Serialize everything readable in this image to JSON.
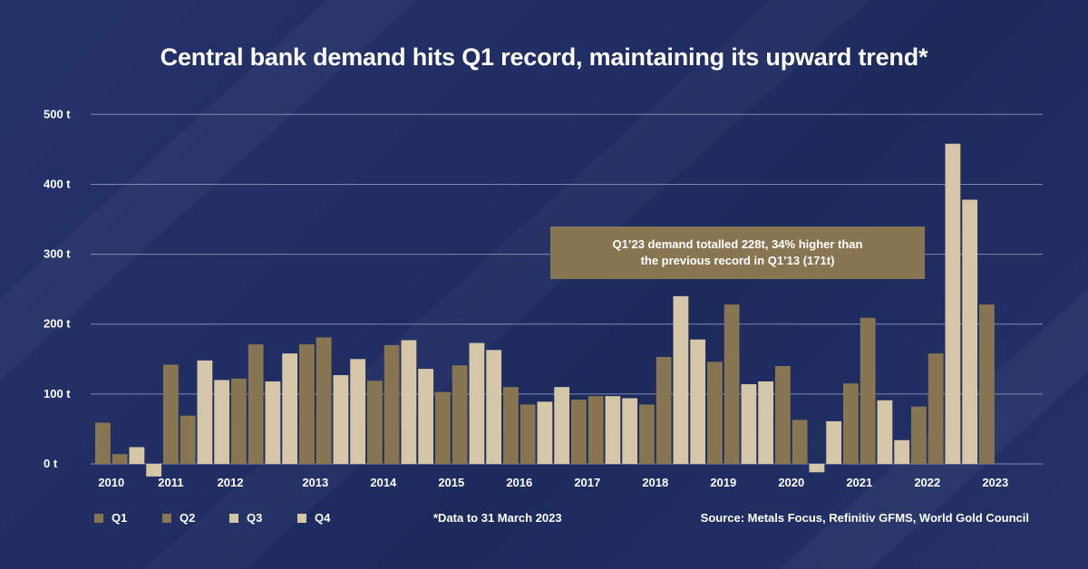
{
  "title": "Central bank demand hits Q1 record, maintaining its upward trend*",
  "annotation": {
    "line1": "Q1’23 demand totalled 228t, 34% higher than",
    "line2": "the previous record in Q1’13 (171t)"
  },
  "footnote": "*Data to 31 March 2023",
  "source": "Source: Metals Focus, Refinitiv GFMS, World Gold Council",
  "colors": {
    "Q1": "#877651",
    "Q2": "#877651",
    "Q3": "#d4c6a6",
    "Q4": "#d4c6a6",
    "callout": "#877651",
    "background": "#1f2d62",
    "grid": "#8f99bf"
  },
  "chart_data": {
    "type": "bar",
    "title": "Central bank demand hits Q1 record, maintaining its upward trend*",
    "xlabel": "",
    "ylabel": "",
    "ylim": [
      -20,
      500
    ],
    "yticks": [
      0,
      100,
      200,
      300,
      400,
      500
    ],
    "ytick_labels": [
      "0 t",
      "100 t",
      "200 t",
      "300 t",
      "400 t",
      "500 t"
    ],
    "grid": true,
    "legend_position": "bottom-left",
    "categories": [
      "Q1’10",
      "Q2’10",
      "Q3’10",
      "Q4’10",
      "Q1’11",
      "Q2’11",
      "Q3’11",
      "Q4’11",
      "Q1’12",
      "Q2’12",
      "Q3’12",
      "Q4’12",
      "Q1’13",
      "Q2’13",
      "Q3’13",
      "Q4’13",
      "Q1’14",
      "Q2’14",
      "Q3’14",
      "Q4’14",
      "Q1’15",
      "Q2’15",
      "Q3’15",
      "Q4’15",
      "Q1’16",
      "Q2’16",
      "Q3’16",
      "Q4’16",
      "Q1’17",
      "Q2’17",
      "Q3’17",
      "Q4’17",
      "Q1’18",
      "Q2’18",
      "Q3’18",
      "Q4’18",
      "Q1’19",
      "Q2’19",
      "Q3’19",
      "Q4’19",
      "Q1’20",
      "Q2’20",
      "Q3’20",
      "Q4’20",
      "Q1’21",
      "Q2’21",
      "Q3’21",
      "Q4’21",
      "Q1’22",
      "Q2’22",
      "Q3’22",
      "Q4’22",
      "Q1’23"
    ],
    "quarters": [
      "Q1",
      "Q2",
      "Q3",
      "Q4",
      "Q1",
      "Q2",
      "Q3",
      "Q4",
      "Q1",
      "Q2",
      "Q3",
      "Q4",
      "Q1",
      "Q2",
      "Q3",
      "Q4",
      "Q1",
      "Q2",
      "Q3",
      "Q4",
      "Q1",
      "Q2",
      "Q3",
      "Q4",
      "Q1",
      "Q2",
      "Q3",
      "Q4",
      "Q1",
      "Q2",
      "Q3",
      "Q4",
      "Q1",
      "Q2",
      "Q3",
      "Q4",
      "Q1",
      "Q2",
      "Q3",
      "Q4",
      "Q1",
      "Q2",
      "Q3",
      "Q4",
      "Q1",
      "Q2",
      "Q3",
      "Q4",
      "Q1",
      "Q2",
      "Q3",
      "Q4",
      "Q1"
    ],
    "values": [
      59,
      14,
      24,
      -18,
      142,
      69,
      148,
      120,
      122,
      171,
      118,
      158,
      171,
      181,
      127,
      150,
      119,
      170,
      177,
      136,
      103,
      141,
      173,
      163,
      110,
      85,
      89,
      110,
      92,
      97,
      97,
      94,
      85,
      153,
      240,
      178,
      146,
      228,
      114,
      118,
      140,
      63,
      -12,
      61,
      115,
      209,
      91,
      34,
      82,
      158,
      458,
      378,
      228
    ],
    "year_labels": [
      "2010",
      "2011",
      "2012",
      "2013",
      "2014",
      "2015",
      "2016",
      "2017",
      "2018",
      "2019",
      "2020",
      "2021",
      "2022",
      "2023"
    ],
    "year_label_positions": [
      1.5,
      5,
      8.5,
      13.5,
      17.5,
      21.5,
      25.5,
      29.5,
      33.5,
      37.5,
      41.5,
      45.5,
      49.5,
      53.5
    ],
    "legend": [
      "Q1",
      "Q2",
      "Q3",
      "Q4"
    ]
  }
}
